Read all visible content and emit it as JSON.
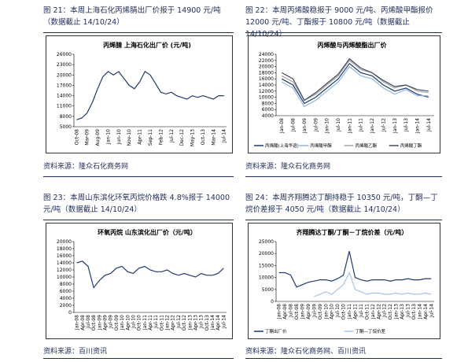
{
  "captions": [
    "图 21：本周上海石化丙烯腈出厂价报于 14900 元/吨（数据截止 14/10/24）",
    "图 22：本周丙烯酸稳报于 9000 元/吨、丙烯酸甲酯报价 12000 元/吨、丁酯报于 10800 元/吨（数据截止 14/10/24）",
    "图 23：本周山东滨化环氧丙烷价格跌 4.8%报于 14000 元/吨（数据截止 14/10/24）",
    "图 24：本周齐翔腾达丁酮持稳于 10350 元/吨，丁酮—丁烷价差报于 4050 元/吨（数据截止 14/10/24）"
  ],
  "sources": [
    "资料来源：隆众石化商务网",
    "资料来源：隆众石化商务网",
    "资料来源：百川资讯",
    "资料来源：隆众石化商务网、百川资讯"
  ],
  "chart_data": [
    {
      "type": "line",
      "title": "丙烯腈 上海石化出厂价 (元/吨)",
      "categories": [
        "Oct-08",
        null,
        "Mar-09",
        null,
        "Aug-09",
        null,
        "Jan-10",
        null,
        "Jun-10",
        null,
        "Nov-10",
        null,
        "Apr-11",
        null,
        "Sep-11",
        null,
        "Feb-12",
        null,
        "Jul-12",
        null,
        "Dec-12",
        null,
        "May-13",
        null,
        "Oct-13",
        null,
        "Mar-14",
        null,
        "Jul-14"
      ],
      "values": [
        7000,
        7500,
        9000,
        12000,
        16000,
        19500,
        21000,
        20000,
        21000,
        19000,
        17000,
        16000,
        18000,
        21000,
        20000,
        17500,
        15000,
        14500,
        15000,
        14000,
        13500,
        13000,
        14000,
        13500,
        14000,
        13500,
        13000,
        14000,
        14000
      ],
      "color": "#1f3b70",
      "ylim": [
        5000,
        26000
      ],
      "yticks": [
        5000,
        8000,
        11000,
        14000,
        17000,
        20000,
        23000,
        26000
      ]
    },
    {
      "type": "line",
      "title": "丙烯酸与丙烯酸酯出厂价",
      "categories": [
        "Jan-08",
        "Jul-08",
        "Jan-09",
        "Jul-09",
        "Jan-10",
        "Jul-10",
        "Jan-11",
        "Jul-11",
        "Jan-12",
        "Jul-12",
        "Jan-13",
        "Jul-13",
        "Jan-14",
        "Jul-14"
      ],
      "series": [
        {
          "name": "丙烯酸(上海华谊)",
          "color": "#1f3b70",
          "values": [
            16000,
            14000,
            8000,
            10000,
            13000,
            16000,
            21000,
            18000,
            17000,
            14000,
            12000,
            13000,
            11000,
            10000
          ]
        },
        {
          "name": "丙烯酸甲酯",
          "color": "#8fb4e3",
          "values": [
            15000,
            13000,
            7000,
            9000,
            12000,
            15000,
            20000,
            17000,
            16000,
            13000,
            11000,
            12500,
            10500,
            10500
          ]
        },
        {
          "name": "丙烯酸乙酯",
          "color": "#a6a6a6",
          "values": [
            17000,
            15000,
            9000,
            11000,
            14000,
            17000,
            22000,
            19000,
            18000,
            15000,
            13000,
            14000,
            12000,
            11500
          ]
        },
        {
          "name": "丙烯酸丁酯",
          "color": "#404a5e",
          "values": [
            18000,
            16000,
            9000,
            11500,
            14500,
            17500,
            22500,
            19500,
            18000,
            15500,
            13500,
            14000,
            12500,
            12000
          ]
        }
      ],
      "ylim": [
        4000,
        24000
      ],
      "yticks": [
        4000,
        6000,
        8000,
        10000,
        12000,
        14000,
        16000,
        18000,
        20000,
        22000,
        24000
      ],
      "legend": "bottom"
    },
    {
      "type": "line",
      "title": "环氧丙烷 山东滨化出厂价（元/吨）",
      "categories": [
        "Jan-08",
        "Apr-08",
        "Jul-08",
        "Oct-08",
        "Jan-09",
        "Apr-09",
        "Jul-09",
        "Oct-09",
        "Jan-10",
        "Apr-10",
        "Jul-10",
        "Oct-10",
        "Jan-11",
        "Apr-11",
        "Jul-11",
        "Oct-11",
        "Jan-12",
        "Apr-12",
        "Jul-12",
        "Oct-12",
        "Jan-13",
        "Apr-13",
        "Jul-13",
        "Oct-13",
        "Jan-14",
        "Apr-14",
        "Jul-14"
      ],
      "values": [
        14000,
        14500,
        13000,
        7000,
        9000,
        10500,
        11000,
        12500,
        13000,
        11500,
        11000,
        12500,
        13000,
        12000,
        11500,
        11500,
        12000,
        11000,
        10500,
        11000,
        10500,
        10000,
        11000,
        10500,
        10500,
        11000,
        12500
      ],
      "color": "#1f3b70",
      "ylim": [
        0,
        20000
      ],
      "yticks": [
        0,
        2000,
        4000,
        6000,
        8000,
        10000,
        12000,
        14000,
        16000,
        18000,
        20000
      ]
    },
    {
      "type": "line",
      "title": "齐翔腾达丁酮/丁酮－丁烷价差（元/吨）",
      "categories": [
        "Jan-08",
        "Apr-08",
        "Jul-08",
        "Oct-08",
        "Jan-09",
        "Apr-09",
        "Jul-09",
        "Oct-09",
        "Jan-10",
        "Apr-10",
        "Jul-10",
        "Oct-10",
        "Jan-11",
        "Apr-11",
        "Jul-11",
        "Oct-11",
        "Jan-12",
        "Apr-12",
        "Jul-12",
        "Oct-12",
        "Jan-13",
        "Apr-13",
        "Jul-13",
        "Oct-13",
        "Jan-14",
        "Apr-14",
        "Jul-14"
      ],
      "series": [
        {
          "name": "丁酮出厂价",
          "color": "#1f3b70",
          "values": [
            12000,
            12000,
            11000,
            6000,
            7000,
            8000,
            8500,
            9000,
            9000,
            8500,
            9500,
            11000,
            21000,
            10000,
            9000,
            8500,
            9000,
            9000,
            9000,
            8500,
            9000,
            9000,
            9500,
            9000,
            9000,
            9500,
            9500
          ]
        },
        {
          "name": "丁酮—丁烷价差",
          "color": "#a9c4e8",
          "values": [
            null,
            null,
            null,
            null,
            null,
            null,
            2000,
            3000,
            4000,
            3000,
            5000,
            7000,
            12000,
            5000,
            4000,
            3000,
            3500,
            3500,
            3000,
            3000,
            3500,
            3000,
            3500,
            3000,
            3000,
            3500,
            3000
          ]
        }
      ],
      "ylim": [
        0,
        25000
      ],
      "yticks": [
        0,
        5000,
        10000,
        15000,
        20000,
        25000
      ],
      "legend": "bottom"
    }
  ]
}
